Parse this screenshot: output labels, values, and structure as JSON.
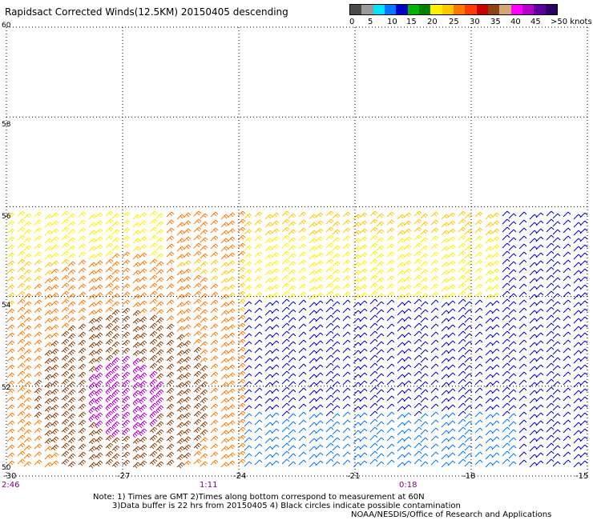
{
  "title": "Rapidsact Corrected Winds(12.5KM) 20150405 descending",
  "legend": {
    "labels": [
      "0",
      "5",
      "10",
      "15",
      "20",
      "25",
      "30",
      "35",
      "40",
      "45",
      ">50 knots"
    ],
    "colors": [
      "#4a4a4a",
      "#9a9a9a",
      "#00e4ff",
      "#0078ff",
      "#0000c8",
      "#00b400",
      "#008000",
      "#fff000",
      "#ffc800",
      "#ff7800",
      "#ff3c00",
      "#c80000",
      "#8b4513",
      "#d2a679",
      "#ff00ff",
      "#b400c8",
      "#5a009b",
      "#2d0064"
    ]
  },
  "axes": {
    "lat_labels": [
      "60",
      "58",
      "56",
      "54",
      "52",
      "50"
    ],
    "lon_labels": [
      "-30",
      "-27",
      "-24",
      "-21",
      "-18",
      "-15"
    ],
    "time_labels": [
      "2:46",
      "1:11",
      "0:18"
    ]
  },
  "notes": {
    "line1": "Note: 1) Times are GMT 2)Times along bottom correspond to measurement at 60N",
    "line2": "3)Data buffer is 22 hrs from 20150405 4) Black circles indicate possible contamination",
    "credit": "NOAA/NESDIS/Office of Research and Applications"
  }
}
